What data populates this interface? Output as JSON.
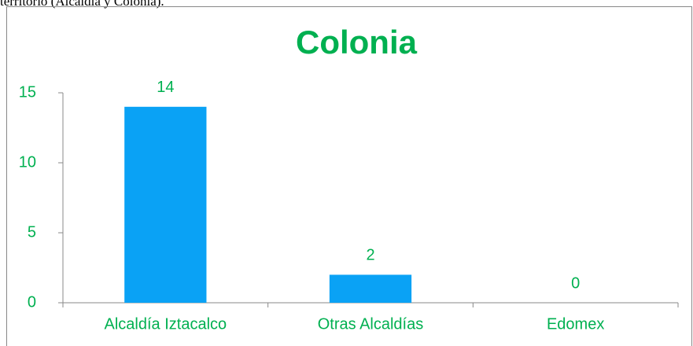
{
  "caption": "territorio (Alcaldía y Colonia).",
  "chart_data": {
    "type": "bar",
    "title": "Colonia",
    "categories": [
      "Alcaldía Iztacalco",
      "Otras Alcaldías",
      "Edomex"
    ],
    "values": [
      14,
      2,
      0
    ],
    "color": "#0aa2f5",
    "text_color": "#00b050",
    "ylim": [
      0,
      15
    ],
    "yticks": [
      0,
      5,
      10,
      15
    ],
    "grid": false
  }
}
